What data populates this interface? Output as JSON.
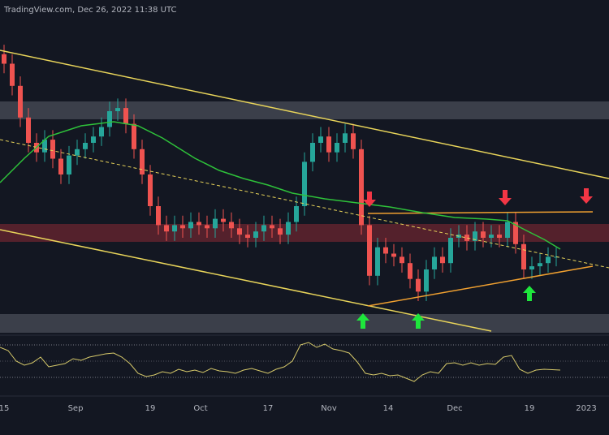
{
  "chart_data": {
    "type": "candlestick",
    "title": "TradingView.com, Dec 26, 2022 11:38 UTC",
    "categories": [
      "15",
      "Sep",
      "19",
      "Oct",
      "17",
      "Nov",
      "14",
      "Dec",
      "19",
      "2023"
    ],
    "ylim": [
      0,
      100
    ],
    "up_color": "#26a69a",
    "down_color": "#ef5350",
    "open": [
      88,
      85,
      78,
      68,
      60,
      57,
      61,
      55,
      50,
      56,
      58,
      60,
      62,
      65,
      70,
      71,
      66,
      58,
      50,
      40,
      34,
      32,
      34,
      33,
      35,
      34,
      33,
      36,
      35,
      33,
      31,
      30,
      32,
      34,
      33,
      31,
      35,
      40,
      54,
      60,
      62,
      57,
      60,
      63,
      58,
      34,
      18,
      27,
      25,
      24,
      22,
      17,
      13,
      20,
      24,
      22,
      30,
      31,
      29,
      32,
      30,
      31,
      30,
      35,
      28,
      20,
      21,
      22,
      24
    ],
    "high": [
      91,
      88,
      81,
      71,
      63,
      64,
      64,
      58,
      59,
      61,
      63,
      65,
      68,
      73,
      74,
      74,
      69,
      61,
      53,
      43,
      37,
      37,
      37,
      38,
      38,
      37,
      39,
      39,
      38,
      36,
      34,
      35,
      37,
      37,
      36,
      38,
      43,
      57,
      63,
      65,
      65,
      63,
      66,
      66,
      61,
      37,
      30,
      30,
      28,
      27,
      25,
      20,
      23,
      27,
      27,
      33,
      34,
      34,
      35,
      35,
      34,
      34,
      38,
      38,
      31,
      24,
      25,
      27,
      27
    ],
    "low": [
      82,
      75,
      65,
      57,
      54,
      54,
      52,
      47,
      47,
      53,
      55,
      57,
      59,
      62,
      67,
      63,
      55,
      47,
      37,
      31,
      29,
      29,
      30,
      30,
      31,
      30,
      30,
      32,
      30,
      28,
      27,
      27,
      29,
      30,
      28,
      28,
      32,
      37,
      51,
      57,
      54,
      54,
      57,
      55,
      31,
      15,
      15,
      22,
      21,
      19,
      14,
      10,
      10,
      17,
      19,
      19,
      27,
      26,
      26,
      27,
      27,
      27,
      27,
      25,
      17,
      17,
      18,
      19,
      21
    ],
    "close": [
      85,
      78,
      68,
      60,
      57,
      61,
      55,
      50,
      56,
      58,
      60,
      62,
      65,
      70,
      71,
      66,
      58,
      50,
      40,
      34,
      32,
      34,
      33,
      35,
      34,
      33,
      36,
      35,
      33,
      31,
      30,
      32,
      34,
      33,
      31,
      35,
      40,
      54,
      60,
      62,
      57,
      60,
      63,
      58,
      34,
      18,
      27,
      25,
      24,
      22,
      17,
      13,
      20,
      24,
      22,
      30,
      31,
      29,
      32,
      30,
      31,
      30,
      35,
      28,
      20,
      21,
      22,
      24,
      24
    ]
  }
}
